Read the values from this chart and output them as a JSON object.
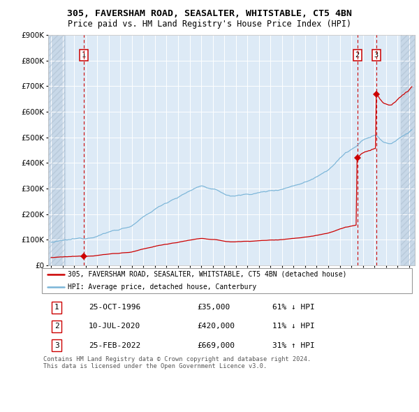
{
  "title1": "305, FAVERSHAM ROAD, SEASALTER, WHITSTABLE, CT5 4BN",
  "title2": "Price paid vs. HM Land Registry's House Price Index (HPI)",
  "sale1_date": 1996.82,
  "sale1_price": 35000,
  "sale2_date": 2020.52,
  "sale2_price": 420000,
  "sale3_date": 2022.15,
  "sale3_price": 669000,
  "hpi_color": "#7ab5d8",
  "price_color": "#cc0000",
  "background_chart": "#ddeaf6",
  "grid_color": "#ffffff",
  "hatch_color": "#c8d8e8",
  "ylim_max": 900000,
  "xmin": 1993.75,
  "xmax": 2025.5,
  "legend1": "305, FAVERSHAM ROAD, SEASALTER, WHITSTABLE, CT5 4BN (detached house)",
  "legend2": "HPI: Average price, detached house, Canterbury",
  "footnote": "Contains HM Land Registry data © Crown copyright and database right 2024.\nThis data is licensed under the Open Government Licence v3.0.",
  "table": [
    {
      "num": "1",
      "date": "25-OCT-1996",
      "price": "£35,000",
      "hpi": "61% ↓ HPI"
    },
    {
      "num": "2",
      "date": "10-JUL-2020",
      "price": "£420,000",
      "hpi": "11% ↓ HPI"
    },
    {
      "num": "3",
      "date": "25-FEB-2022",
      "price": "£669,000",
      "hpi": "31% ↑ HPI"
    }
  ]
}
